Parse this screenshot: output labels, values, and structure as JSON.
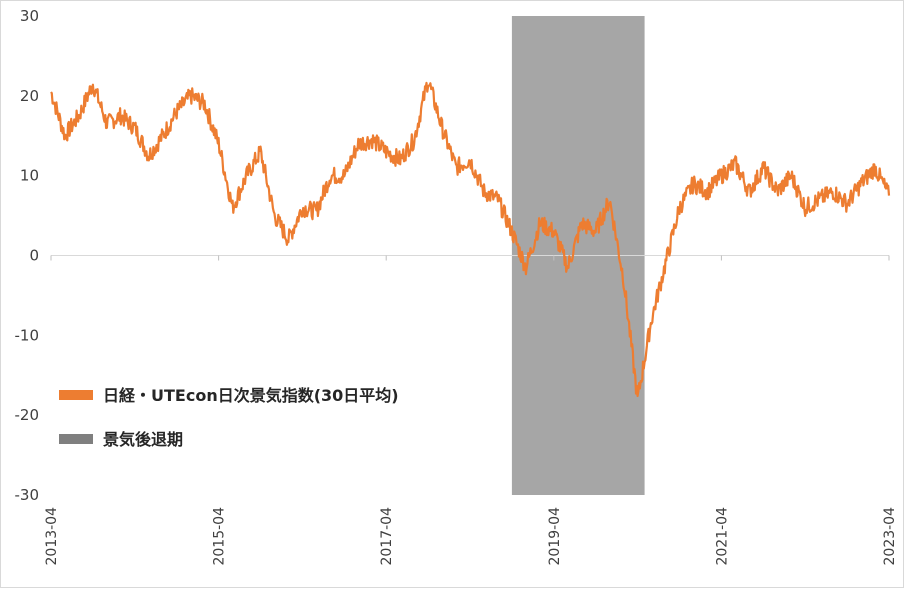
{
  "chart_data": {
    "type": "line",
    "title": "",
    "xlabel": "",
    "ylabel": "",
    "ylim": [
      -30,
      30
    ],
    "yticks": [
      30,
      20,
      10,
      0,
      -10,
      -20,
      -30
    ],
    "xticks": [
      "2013-04",
      "2015-04",
      "2017-04",
      "2019-04",
      "2021-04",
      "2023-04"
    ],
    "legend_position": "left-bottom",
    "recession_band": {
      "name": "景気後退期",
      "start": "2018-10",
      "end": "2020-05",
      "color": "#a6a6a6"
    },
    "series": [
      {
        "name": "日経・UTEcon日次景気指数(30日平均)",
        "color": "#ed7d31",
        "x": [
          "2013-04",
          "2013-06",
          "2013-08",
          "2013-10",
          "2013-12",
          "2014-02",
          "2014-04",
          "2014-06",
          "2014-08",
          "2014-10",
          "2014-12",
          "2015-02",
          "2015-04",
          "2015-06",
          "2015-08",
          "2015-10",
          "2015-12",
          "2016-02",
          "2016-04",
          "2016-06",
          "2016-08",
          "2016-10",
          "2016-12",
          "2017-02",
          "2017-04",
          "2017-06",
          "2017-08",
          "2017-10",
          "2017-12",
          "2018-02",
          "2018-04",
          "2018-06",
          "2018-08",
          "2018-10",
          "2018-12",
          "2019-02",
          "2019-04",
          "2019-06",
          "2019-08",
          "2019-10",
          "2019-12",
          "2020-02",
          "2020-04",
          "2020-06",
          "2020-08",
          "2020-10",
          "2020-12",
          "2021-02",
          "2021-04",
          "2021-06",
          "2021-08",
          "2021-10",
          "2021-12",
          "2022-02",
          "2022-04",
          "2022-06",
          "2022-08",
          "2022-10",
          "2022-12",
          "2023-02",
          "2023-04"
        ],
        "values": [
          20.5,
          15,
          17.5,
          21.5,
          16.5,
          17.5,
          16,
          12.5,
          15,
          18,
          20,
          19,
          14,
          6,
          10,
          13,
          5,
          2,
          6,
          5.5,
          10,
          10,
          14,
          14.5,
          13,
          12,
          14.5,
          22,
          16,
          11,
          12,
          8,
          7,
          3,
          -1.5,
          4,
          3,
          -1.5,
          4,
          3,
          7,
          -3,
          -18,
          -8,
          -1,
          6,
          9,
          8,
          10,
          11.5,
          8,
          11,
          8,
          10,
          6,
          7,
          8,
          6.5,
          9,
          11,
          7.5
        ]
      }
    ]
  }
}
